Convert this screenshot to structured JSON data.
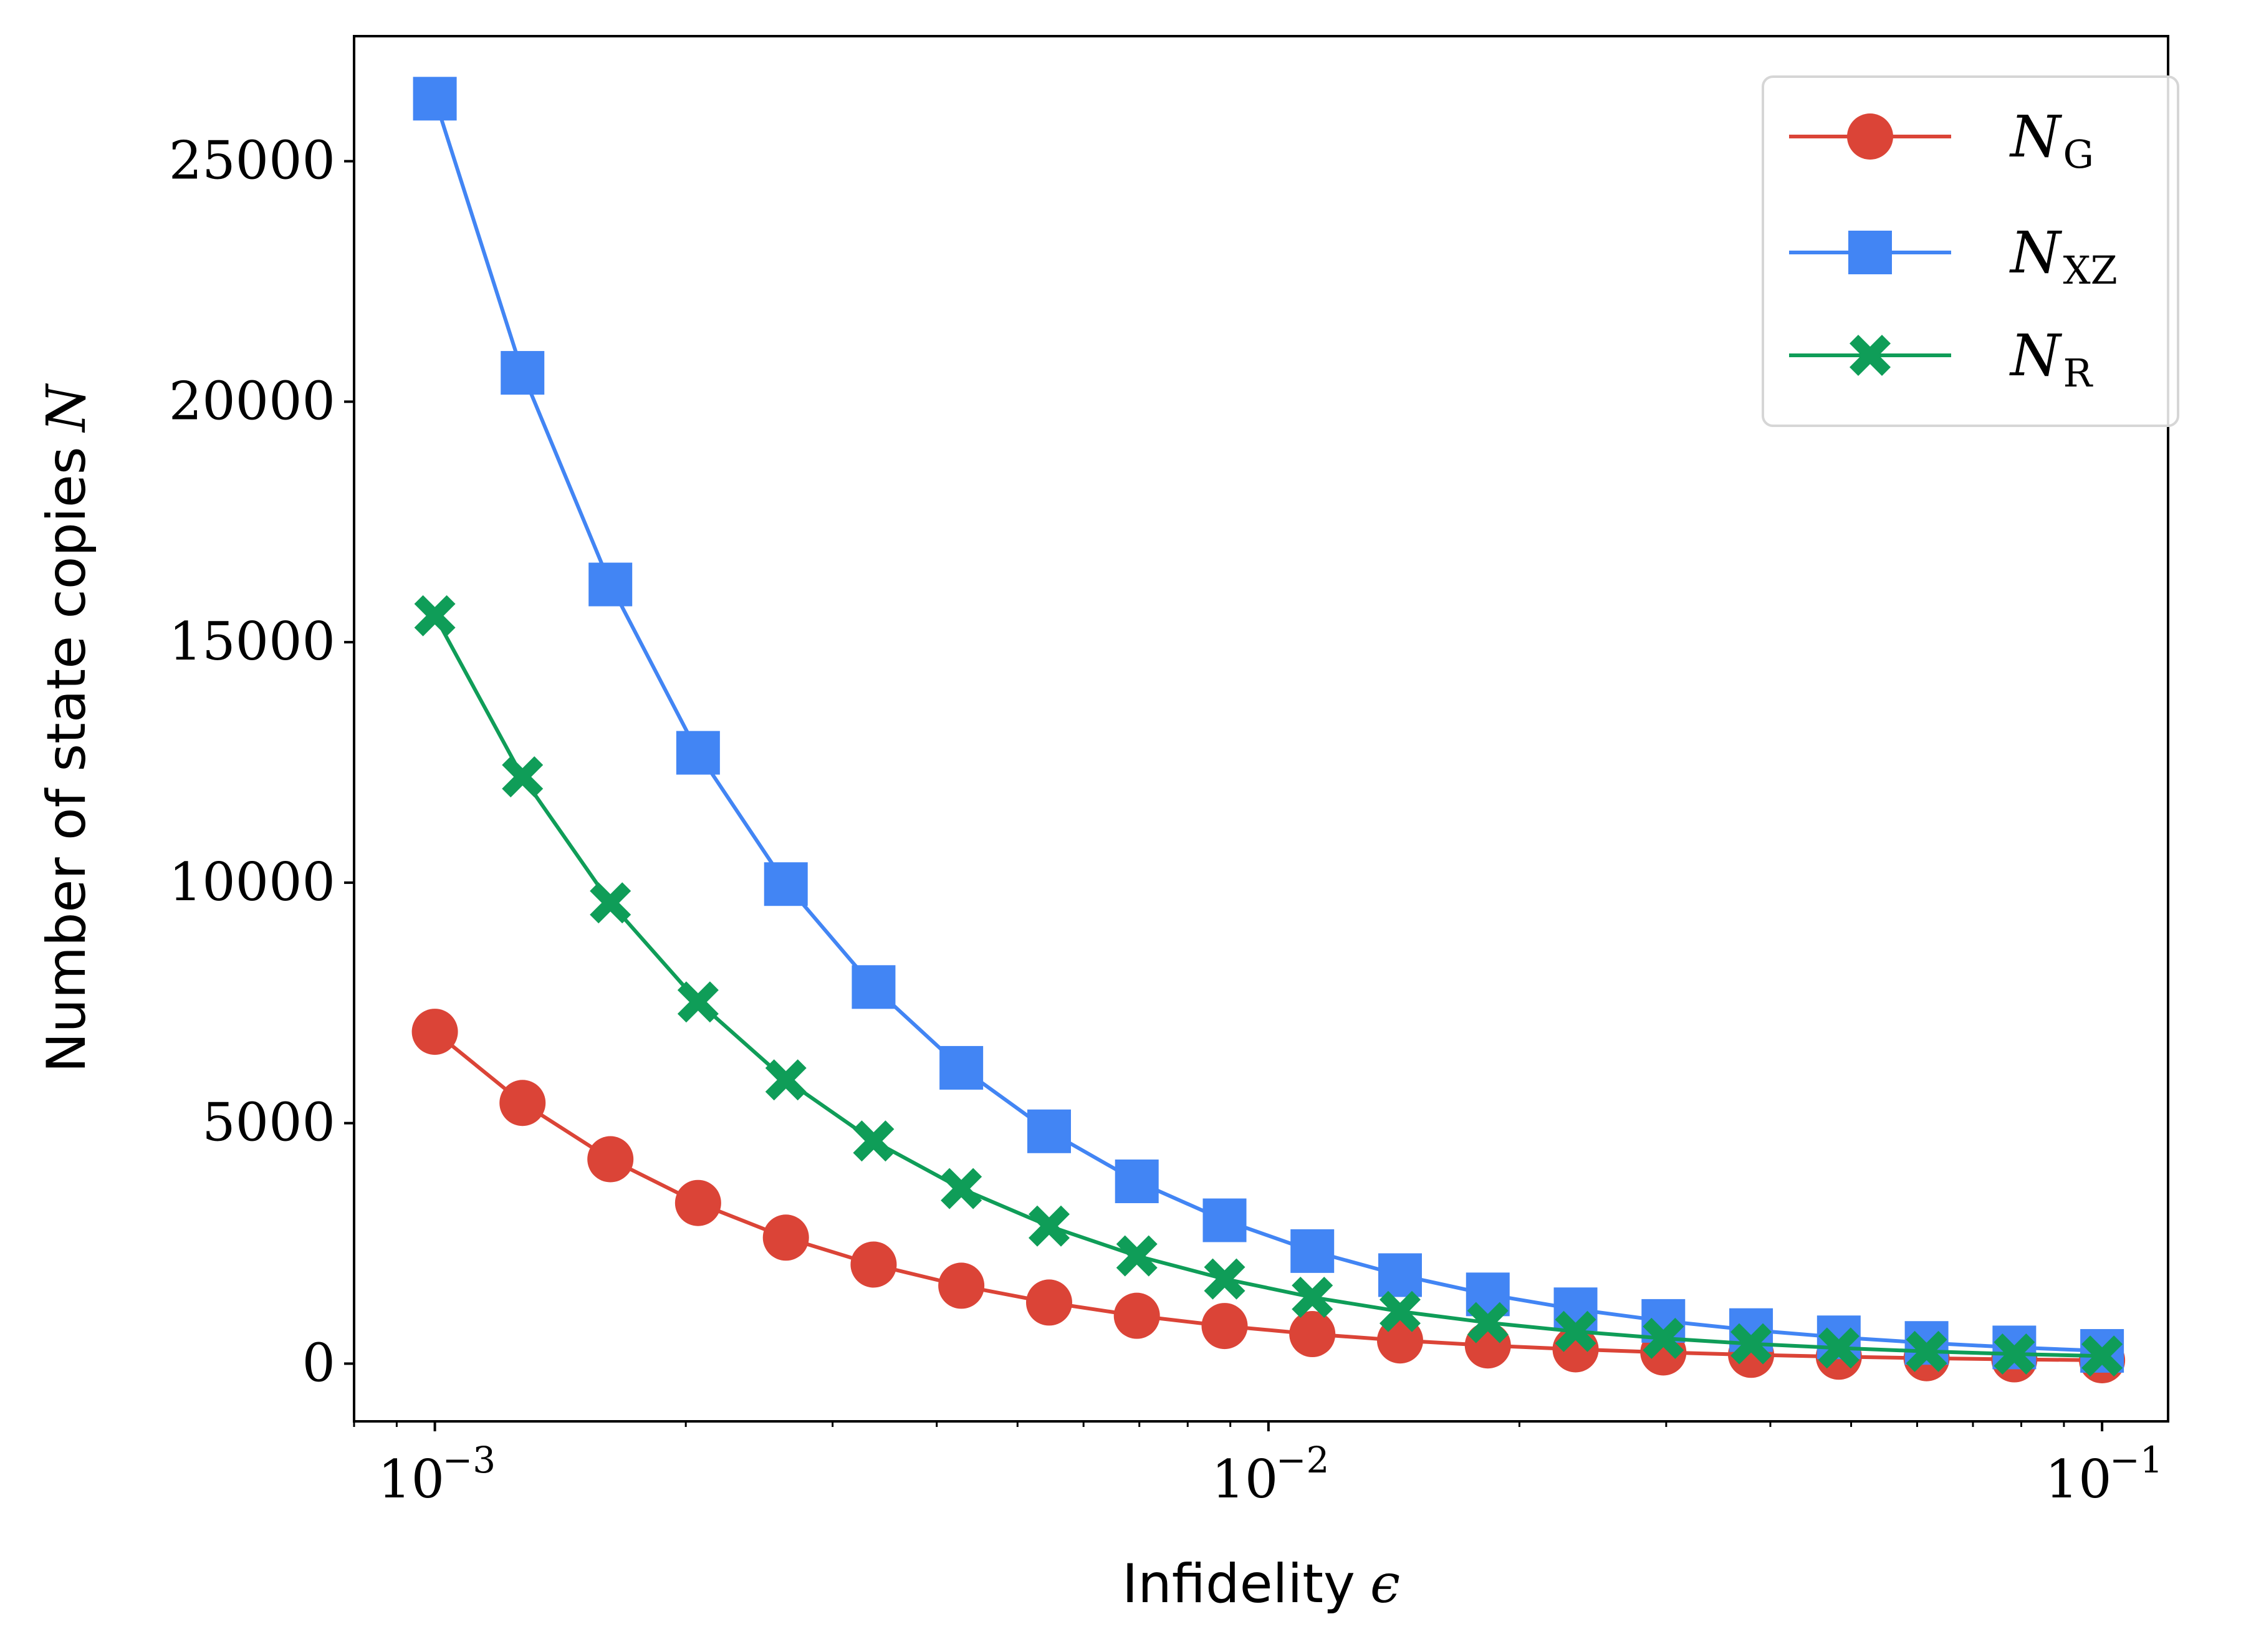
{
  "chart_data": {
    "type": "line",
    "xscale": "log",
    "xlim": [
      0.0008,
      0.12
    ],
    "ylim": [
      -1200,
      27600
    ],
    "x": [
      0.001,
      0.001274,
      0.001624,
      0.002069,
      0.002637,
      0.00336,
      0.004281,
      0.005456,
      0.006952,
      0.008859,
      0.011288,
      0.014384,
      0.01833,
      0.023357,
      0.029764,
      0.037927,
      0.048329,
      0.061585,
      0.078476,
      0.1
    ],
    "xlabel": {
      "text": "Infidelity",
      "symbol": "ϵ"
    },
    "ylabel": {
      "text": "Number of state copies",
      "symbol": "N"
    },
    "xticks": [
      {
        "value": 0.001,
        "base": "10",
        "exp": "−3"
      },
      {
        "value": 0.01,
        "base": "10",
        "exp": "−2"
      },
      {
        "value": 0.1,
        "base": "10",
        "exp": "−1"
      }
    ],
    "yticks": [
      {
        "value": 0,
        "label": "0"
      },
      {
        "value": 5000,
        "label": "5000"
      },
      {
        "value": 10000,
        "label": "10000"
      },
      {
        "value": 15000,
        "label": "15000"
      },
      {
        "value": 20000,
        "label": "20000"
      },
      {
        "value": 25000,
        "label": "25000"
      }
    ],
    "legend_position": "top-right",
    "series": [
      {
        "name": "N_G",
        "main": "N",
        "sub": "G",
        "color": "#DB4437",
        "marker": "circle",
        "values": [
          6900,
          5420,
          4250,
          3340,
          2620,
          2060,
          1620,
          1270,
          995,
          782,
          614,
          482,
          378,
          297,
          233,
          183,
          144,
          113,
          89,
          70
        ]
      },
      {
        "name": "N_XZ",
        "main": "N",
        "sub": "XZ",
        "color": "#4285F4",
        "marker": "square",
        "values": [
          26300,
          20600,
          16200,
          12700,
          9970,
          7830,
          6150,
          4830,
          3790,
          2980,
          2340,
          1840,
          1440,
          1130,
          888,
          697,
          547,
          430,
          337,
          265
        ]
      },
      {
        "name": "N_R",
        "main": "N",
        "sub": "R",
        "color": "#0F9D58",
        "marker": "x",
        "values": [
          15550,
          12200,
          9580,
          7520,
          5900,
          4630,
          3640,
          2860,
          2240,
          1760,
          1380,
          1085,
          852,
          669,
          525,
          412,
          324,
          254,
          200,
          157
        ]
      }
    ]
  }
}
